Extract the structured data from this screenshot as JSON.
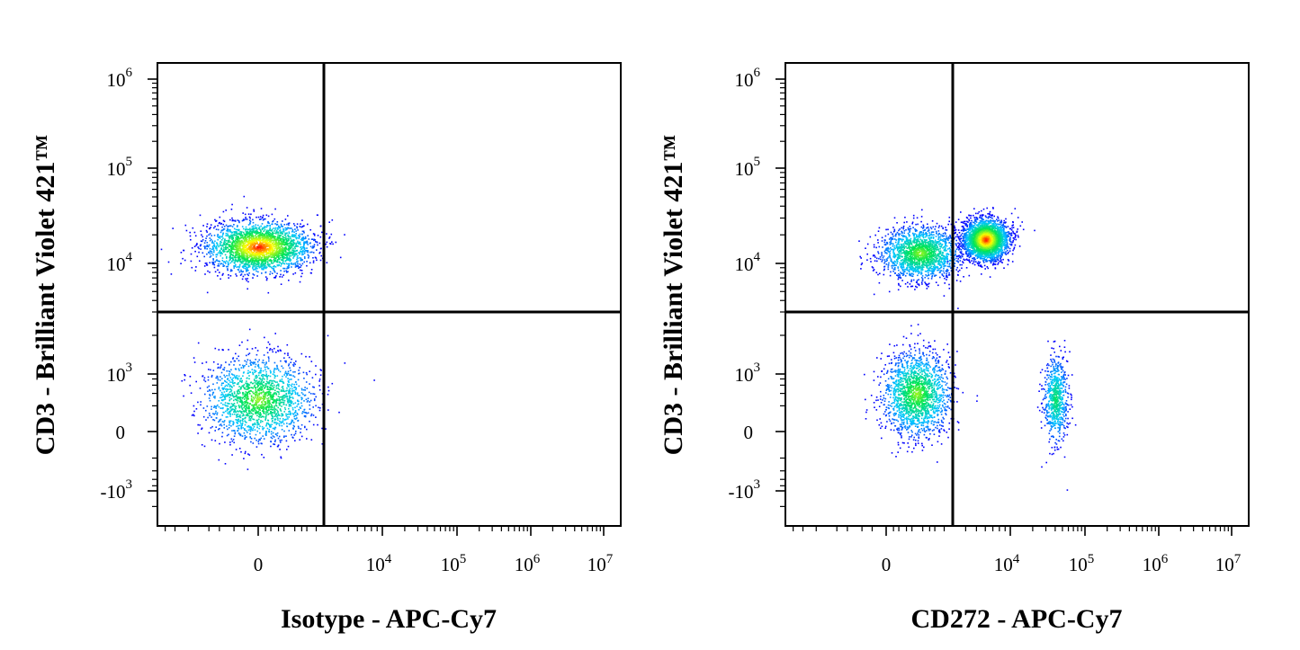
{
  "chart_data": [
    {
      "type": "scatter",
      "xlabel": "Isotype - APC-Cy7",
      "ylabel": "CD3 - Brilliant Violet 421™",
      "x_scale": "biexponential",
      "y_scale": "biexponential",
      "x_tick_labels": [
        {
          "value": 0,
          "label": "0"
        },
        {
          "value": 10000,
          "label": "10",
          "sup": "4"
        },
        {
          "value": 100000,
          "label": "10",
          "sup": "5"
        },
        {
          "value": 1000000,
          "label": "10",
          "sup": "6"
        },
        {
          "value": 10000000,
          "label": "10",
          "sup": "7"
        }
      ],
      "y_tick_labels": [
        {
          "value": -1000,
          "label": "-10",
          "sup": "3"
        },
        {
          "value": 0,
          "label": "0"
        },
        {
          "value": 1000,
          "label": "10",
          "sup": "3"
        },
        {
          "value": 10000,
          "label": "10",
          "sup": "4"
        },
        {
          "value": 100000,
          "label": "10",
          "sup": "5"
        },
        {
          "value": 1000000,
          "label": "10",
          "sup": "6"
        }
      ],
      "quadrant_gate": {
        "x": 3000,
        "y": 3000
      },
      "populations": [
        {
          "x_center": 0,
          "y_center": 15000,
          "x_spread": 900,
          "y_spread": 9000,
          "density": "high"
        },
        {
          "x_center": 0,
          "y_center": 300,
          "x_spread": 1000,
          "y_spread": 900,
          "density": "medium"
        }
      ],
      "color_scale": [
        "#0000ff",
        "#00ffff",
        "#00ff00",
        "#ffff00",
        "#ff0000"
      ]
    },
    {
      "type": "scatter",
      "xlabel": "CD272 - APC-Cy7",
      "ylabel": "CD3 - Brilliant Violet 421™",
      "x_scale": "biexponential",
      "y_scale": "biexponential",
      "x_tick_labels": [
        {
          "value": 0,
          "label": "0"
        },
        {
          "value": 10000,
          "label": "10",
          "sup": "4"
        },
        {
          "value": 100000,
          "label": "10",
          "sup": "5"
        },
        {
          "value": 1000000,
          "label": "10",
          "sup": "6"
        },
        {
          "value": 10000000,
          "label": "10",
          "sup": "7"
        }
      ],
      "y_tick_labels": [
        {
          "value": -1000,
          "label": "-10",
          "sup": "3"
        },
        {
          "value": 0,
          "label": "0"
        },
        {
          "value": 1000,
          "label": "10",
          "sup": "3"
        },
        {
          "value": 10000,
          "label": "10",
          "sup": "4"
        },
        {
          "value": 100000,
          "label": "10",
          "sup": "5"
        },
        {
          "value": 1000000,
          "label": "10",
          "sup": "6"
        }
      ],
      "quadrant_gate": {
        "x": 3000,
        "y": 3000
      },
      "populations": [
        {
          "x_center": 500,
          "y_center": 13000,
          "x_spread": 2500,
          "y_spread": 8000,
          "density": "medium"
        },
        {
          "x_center": 6000,
          "y_center": 18000,
          "x_spread": 2500,
          "y_spread": 8000,
          "density": "high"
        },
        {
          "x_center": 400,
          "y_center": 400,
          "x_spread": 1500,
          "y_spread": 900,
          "density": "medium"
        },
        {
          "x_center": 40000,
          "y_center": 300,
          "x_spread": 10000,
          "y_spread": 900,
          "density": "low"
        }
      ],
      "color_scale": [
        "#0000ff",
        "#00ffff",
        "#00ff00",
        "#ffff00",
        "#ff0000"
      ]
    }
  ]
}
